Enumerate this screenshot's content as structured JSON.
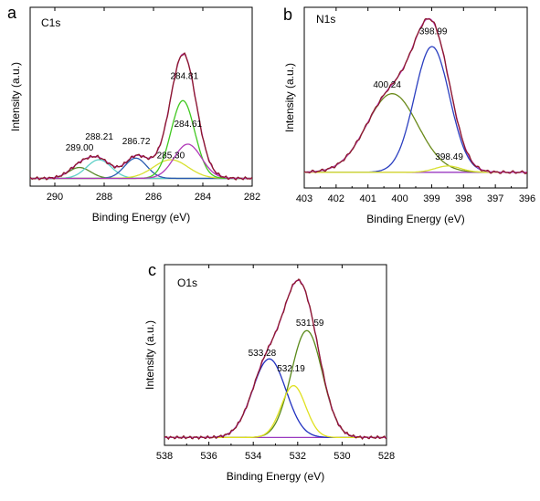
{
  "chart_data": [
    {
      "type": "line",
      "panel_letter": "a",
      "element_label": "C1s",
      "xlabel": "Binding Energy (eV)",
      "ylabel": "Intensity (a.u.)",
      "xlim": [
        291,
        282
      ],
      "x_reversed": true,
      "x_ticks": [
        290,
        288,
        286,
        284,
        282
      ],
      "baseline": 0.05,
      "y_max": 1.15,
      "peak_labels": [
        {
          "text": "289.00",
          "x": 289.0,
          "y": 0.23
        },
        {
          "text": "288.21",
          "x": 288.2,
          "y": 0.3
        },
        {
          "text": "286.72",
          "x": 286.7,
          "y": 0.27
        },
        {
          "text": "285.30",
          "x": 285.3,
          "y": 0.18
        },
        {
          "text": "284.81",
          "x": 284.75,
          "y": 0.69
        },
        {
          "text": "284.61",
          "x": 284.6,
          "y": 0.38
        }
      ],
      "series": [
        {
          "role": "experimental",
          "color": "#8b1a2b",
          "width": 1.6
        },
        {
          "role": "envelope",
          "color": "#c040c8",
          "width": 1.3
        },
        {
          "role": "component",
          "color": "#5a8a2a",
          "center": 289.0,
          "amp": 0.07,
          "sigma": 0.45
        },
        {
          "role": "component",
          "color": "#5fd0c8",
          "center": 288.21,
          "amp": 0.12,
          "sigma": 0.5
        },
        {
          "role": "component",
          "color": "#2a5bb0",
          "center": 286.72,
          "amp": 0.13,
          "sigma": 0.45
        },
        {
          "role": "component",
          "color": "#d8e030",
          "center": 285.3,
          "amp": 0.12,
          "sigma": 0.7
        },
        {
          "role": "component",
          "color": "#40c820",
          "center": 284.81,
          "amp": 0.5,
          "sigma": 0.48
        },
        {
          "role": "component",
          "color": "#b03ab8",
          "center": 284.61,
          "amp": 0.22,
          "sigma": 0.55
        }
      ]
    },
    {
      "type": "line",
      "panel_letter": "b",
      "element_label": "N1s",
      "xlabel": "Binding Energy (eV)",
      "ylabel": "Intensity (a.u.)",
      "xlim": [
        403,
        396
      ],
      "x_reversed": true,
      "x_ticks": [
        403,
        402,
        401,
        400,
        399,
        398,
        397,
        396
      ],
      "baseline": 0.1,
      "y_max": 1.15,
      "peak_labels": [
        {
          "text": "398.99",
          "x": 398.95,
          "y": 0.98
        },
        {
          "text": "400.24",
          "x": 400.4,
          "y": 0.64
        },
        {
          "text": "398.49",
          "x": 398.45,
          "y": 0.18
        }
      ],
      "series": [
        {
          "role": "experimental",
          "color": "#8b1a2b",
          "width": 1.6
        },
        {
          "role": "envelope",
          "color": "#c040c8",
          "width": 1.3
        },
        {
          "role": "component",
          "color": "#6a8a1a",
          "center": 400.24,
          "amp": 0.5,
          "sigma": 0.8
        },
        {
          "role": "component",
          "color": "#2a3ec0",
          "center": 398.99,
          "amp": 0.8,
          "sigma": 0.55
        },
        {
          "role": "component",
          "color": "#d8e030",
          "center": 398.49,
          "amp": 0.04,
          "sigma": 0.4
        }
      ]
    },
    {
      "type": "line",
      "panel_letter": "c",
      "element_label": "O1s",
      "xlabel": "Binding Energy (eV)",
      "ylabel": "Intensity (a.u.)",
      "xlim": [
        538,
        528
      ],
      "x_reversed": true,
      "x_ticks": [
        538,
        536,
        534,
        532,
        530,
        528
      ],
      "baseline": 0.05,
      "y_max": 1.15,
      "peak_labels": [
        {
          "text": "531.59",
          "x": 531.45,
          "y": 0.76
        },
        {
          "text": "533.28",
          "x": 533.6,
          "y": 0.57
        },
        {
          "text": "532.19",
          "x": 532.3,
          "y": 0.47
        }
      ],
      "series": [
        {
          "role": "experimental",
          "color": "#8b1a2b",
          "width": 1.6
        },
        {
          "role": "envelope",
          "color": "#c040c8",
          "width": 1.3
        },
        {
          "role": "component",
          "color": "#5a8a1a",
          "center": 531.59,
          "amp": 0.68,
          "sigma": 0.7
        },
        {
          "role": "component",
          "color": "#2030c0",
          "center": 533.28,
          "amp": 0.5,
          "sigma": 0.75
        },
        {
          "role": "component",
          "color": "#e0e020",
          "center": 532.19,
          "amp": 0.33,
          "sigma": 0.55
        }
      ]
    }
  ]
}
